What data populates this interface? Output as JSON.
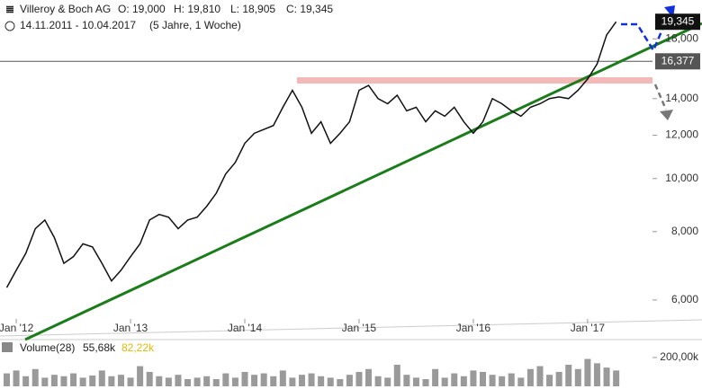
{
  "chart_data": {
    "type": "line",
    "log_scale": true,
    "title": "Villeroy & Boch AG",
    "ohlc_labels": [
      "O: 19,000",
      "H: 19,810",
      "L: 18,905",
      "C: 19,345"
    ],
    "date_range": "14.11.2011 - 10.04.2017",
    "period": "(5 Jahre, 1 Woche)",
    "categories": [
      null,
      "Jan '12",
      null,
      null,
      null,
      null,
      null,
      null,
      null,
      null,
      null,
      null,
      null,
      "Jan '13",
      null,
      null,
      null,
      null,
      null,
      null,
      null,
      null,
      null,
      null,
      null,
      "Jan '14",
      null,
      null,
      null,
      null,
      null,
      null,
      null,
      null,
      null,
      null,
      null,
      "Jan '15",
      null,
      null,
      null,
      null,
      null,
      null,
      null,
      null,
      null,
      null,
      null,
      "Jan '16",
      null,
      null,
      null,
      null,
      null,
      null,
      null,
      null,
      null,
      null,
      null,
      "Jan '17",
      null,
      null,
      null
    ],
    "series": [
      {
        "name": "Villeroy & Boch AG",
        "color": "#111111",
        "values": [
          6.32,
          6.8,
          7.3,
          8.1,
          8.4,
          7.8,
          7.0,
          7.2,
          7.6,
          7.5,
          7.0,
          6.5,
          6.8,
          7.2,
          7.6,
          8.4,
          8.6,
          8.5,
          8.1,
          8.4,
          8.5,
          8.9,
          9.4,
          10.2,
          10.7,
          11.6,
          12.1,
          12.3,
          12.5,
          13.5,
          14.5,
          13.5,
          12.1,
          12.7,
          11.6,
          12.1,
          12.7,
          14.5,
          14.8,
          14.0,
          13.7,
          14.2,
          13.3,
          13.5,
          12.7,
          13.3,
          13.0,
          13.5,
          12.7,
          12.1,
          12.7,
          14.0,
          13.7,
          13.3,
          13.0,
          13.5,
          13.7,
          14.0,
          14.1,
          14.0,
          14.5,
          15.2,
          16.2,
          18.3,
          19.345
        ]
      }
    ],
    "last_value_label": "19,345",
    "reference_line": {
      "value": 16.377,
      "label": "16,377"
    },
    "ylim": [
      5.54,
      21.2
    ],
    "yticks": [
      {
        "value": 6,
        "label": "6,000"
      },
      {
        "value": 8,
        "label": "8,000"
      },
      {
        "value": 10,
        "label": "10,000"
      },
      {
        "value": 12,
        "label": "12,000"
      },
      {
        "value": 14,
        "label": "14,000"
      },
      {
        "value": 18,
        "label": "18,000"
      }
    ],
    "volume": {
      "title": "Volume(28)",
      "value_label": "55,68k",
      "average_label": "82,22k",
      "color": "#9a9a9a",
      "values": [
        90,
        110,
        70,
        120,
        60,
        80,
        70,
        90,
        60,
        75,
        110,
        70,
        80,
        60,
        140,
        100,
        70,
        60,
        80,
        50,
        60,
        70,
        50,
        90,
        60,
        100,
        80,
        90,
        70,
        110,
        60,
        80,
        90,
        70,
        60,
        50,
        80,
        100,
        120,
        70,
        60,
        150,
        80,
        60,
        50,
        120,
        60,
        90,
        70,
        110,
        100,
        80,
        70,
        90,
        60,
        120,
        140,
        80,
        100,
        150,
        120,
        190,
        160,
        130,
        110
      ],
      "ylim": [
        0,
        312
      ],
      "yticks": [
        {
          "value": 200,
          "label": "200,00k"
        }
      ]
    }
  }
}
